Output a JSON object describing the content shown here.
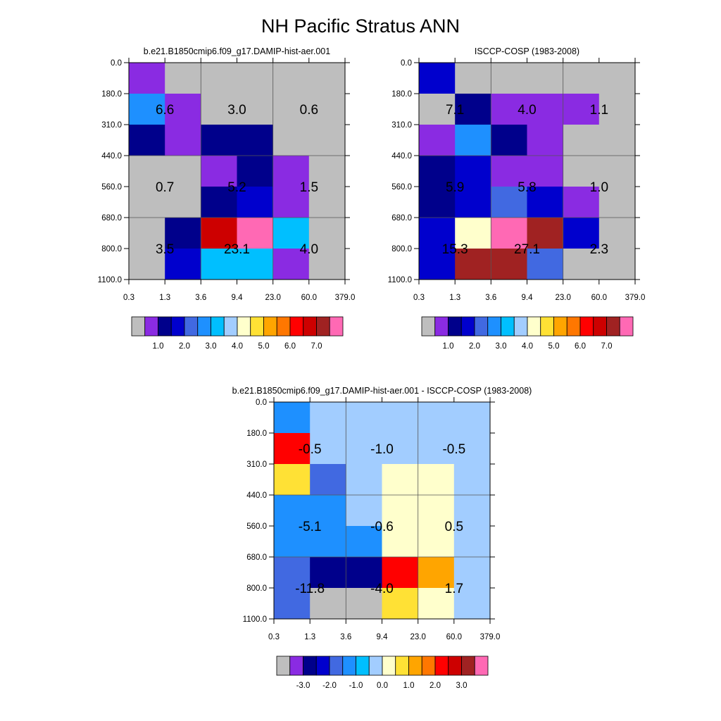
{
  "page_title": "NH Pacific Stratus ANN",
  "chart_data": [
    {
      "type": "heatmap",
      "id": "model",
      "title": "b.e21.B1850cmip6.f09_g17.DAMIP-hist-aer.001",
      "x_tick_labels": [
        "0.3",
        "1.3",
        "3.6",
        "9.4",
        "23.0",
        "60.0",
        "379.0"
      ],
      "y_tick_labels": [
        "0.0",
        "180.0",
        "310.0",
        "440.0",
        "560.0",
        "680.0",
        "800.0",
        "1100.0"
      ],
      "cells": [
        [
          "#8A2BE2",
          "#BEBEBE",
          "#BEBEBE",
          "#BEBEBE",
          "#BEBEBE",
          "#BEBEBE"
        ],
        [
          "#1E90FF",
          "#8A2BE2",
          "#BEBEBE",
          "#BEBEBE",
          "#BEBEBE",
          "#BEBEBE"
        ],
        [
          "#00008B",
          "#8A2BE2",
          "#00008B",
          "#00008B",
          "#BEBEBE",
          "#BEBEBE"
        ],
        [
          "#BEBEBE",
          "#BEBEBE",
          "#8A2BE2",
          "#00008B",
          "#8A2BE2",
          "#BEBEBE"
        ],
        [
          "#BEBEBE",
          "#BEBEBE",
          "#00008B",
          "#0000CD",
          "#8A2BE2",
          "#BEBEBE"
        ],
        [
          "#BEBEBE",
          "#00008B",
          "#CD0000",
          "#FF69B4",
          "#00BFFF",
          "#BEBEBE"
        ],
        [
          "#BEBEBE",
          "#0000CD",
          "#00BFFF",
          "#00BFFF",
          "#8A2BE2",
          "#BEBEBE"
        ]
      ],
      "box_labels": [
        {
          "col": 0,
          "row": 0,
          "text": "6.6"
        },
        {
          "col": 1,
          "row": 0,
          "text": "3.0"
        },
        {
          "col": 2,
          "row": 0,
          "text": "0.6"
        },
        {
          "col": 0,
          "row": 1,
          "text": "0.7"
        },
        {
          "col": 1,
          "row": 1,
          "text": "5.2"
        },
        {
          "col": 2,
          "row": 1,
          "text": "1.5"
        },
        {
          "col": 0,
          "row": 2,
          "text": "3.5"
        },
        {
          "col": 1,
          "row": 2,
          "text": "23.1"
        },
        {
          "col": 2,
          "row": 2,
          "text": "4.0"
        }
      ],
      "colorbar": {
        "colors": [
          "#BEBEBE",
          "#8A2BE2",
          "#00008B",
          "#0000CD",
          "#4169E1",
          "#1E90FF",
          "#00BFFF",
          "#A2CDFF",
          "#FFFFCC",
          "#FFE135",
          "#FFA500",
          "#FF7700",
          "#FF0000",
          "#CD0000",
          "#A02222",
          "#FF69B4"
        ],
        "labels": [
          "1.0",
          "2.0",
          "3.0",
          "4.0",
          "5.0",
          "6.0",
          "7.0"
        ],
        "first_boundary": 1
      }
    },
    {
      "type": "heatmap",
      "id": "obs",
      "title": "ISCCP-COSP (1983-2008)",
      "x_tick_labels": [
        "0.3",
        "1.3",
        "3.6",
        "9.4",
        "23.0",
        "60.0",
        "379.0"
      ],
      "y_tick_labels": [
        "0.0",
        "180.0",
        "310.0",
        "440.0",
        "560.0",
        "680.0",
        "800.0",
        "1100.0"
      ],
      "cells": [
        [
          "#0000CD",
          "#BEBEBE",
          "#BEBEBE",
          "#BEBEBE",
          "#BEBEBE",
          "#BEBEBE"
        ],
        [
          "#BEBEBE",
          "#00008B",
          "#8A2BE2",
          "#8A2BE2",
          "#8A2BE2",
          "#BEBEBE"
        ],
        [
          "#8A2BE2",
          "#1E90FF",
          "#00008B",
          "#8A2BE2",
          "#BEBEBE",
          "#BEBEBE"
        ],
        [
          "#00008B",
          "#0000CD",
          "#8A2BE2",
          "#8A2BE2",
          "#BEBEBE",
          "#BEBEBE"
        ],
        [
          "#00008B",
          "#0000CD",
          "#4169E1",
          "#0000CD",
          "#8A2BE2",
          "#BEBEBE"
        ],
        [
          "#0000CD",
          "#FFFFCC",
          "#FF69B4",
          "#A02222",
          "#0000CD",
          "#BEBEBE"
        ],
        [
          "#0000CD",
          "#A02222",
          "#A02222",
          "#4169E1",
          "#BEBEBE",
          "#BEBEBE"
        ]
      ],
      "box_labels": [
        {
          "col": 0,
          "row": 0,
          "text": "7.1"
        },
        {
          "col": 1,
          "row": 0,
          "text": "4.0"
        },
        {
          "col": 2,
          "row": 0,
          "text": "1.1"
        },
        {
          "col": 0,
          "row": 1,
          "text": "5.9"
        },
        {
          "col": 1,
          "row": 1,
          "text": "5.8"
        },
        {
          "col": 2,
          "row": 1,
          "text": "1.0"
        },
        {
          "col": 0,
          "row": 2,
          "text": "15.3"
        },
        {
          "col": 1,
          "row": 2,
          "text": "27.1"
        },
        {
          "col": 2,
          "row": 2,
          "text": "2.3"
        }
      ],
      "colorbar": {
        "colors": [
          "#BEBEBE",
          "#8A2BE2",
          "#00008B",
          "#0000CD",
          "#4169E1",
          "#1E90FF",
          "#00BFFF",
          "#A2CDFF",
          "#FFFFCC",
          "#FFE135",
          "#FFA500",
          "#FF7700",
          "#FF0000",
          "#CD0000",
          "#A02222",
          "#FF69B4"
        ],
        "labels": [
          "1.0",
          "2.0",
          "3.0",
          "4.0",
          "5.0",
          "6.0",
          "7.0"
        ],
        "first_boundary": 1
      }
    },
    {
      "type": "heatmap",
      "id": "diff",
      "title": "b.e21.B1850cmip6.f09_g17.DAMIP-hist-aer.001 - ISCCP-COSP (1983-2008)",
      "x_tick_labels": [
        "0.3",
        "1.3",
        "3.6",
        "9.4",
        "23.0",
        "60.0",
        "379.0"
      ],
      "y_tick_labels": [
        "0.0",
        "180.0",
        "310.0",
        "440.0",
        "560.0",
        "680.0",
        "800.0",
        "1100.0"
      ],
      "cells": [
        [
          "#1E90FF",
          "#A2CDFF",
          "#A2CDFF",
          "#A2CDFF",
          "#A2CDFF",
          "#A2CDFF"
        ],
        [
          "#FF0000",
          "#A2CDFF",
          "#A2CDFF",
          "#A2CDFF",
          "#A2CDFF",
          "#A2CDFF"
        ],
        [
          "#FFE135",
          "#4169E1",
          "#A2CDFF",
          "#FFFFCC",
          "#FFFFCC",
          "#A2CDFF"
        ],
        [
          "#1E90FF",
          "#1E90FF",
          "#A2CDFF",
          "#FFFFCC",
          "#FFFFCC",
          "#A2CDFF"
        ],
        [
          "#1E90FF",
          "#1E90FF",
          "#1E90FF",
          "#FFFFCC",
          "#FFFFCC",
          "#A2CDFF"
        ],
        [
          "#4169E1",
          "#00008B",
          "#00008B",
          "#FF0000",
          "#FFA500",
          "#A2CDFF"
        ],
        [
          "#4169E1",
          "#BEBEBE",
          "#BEBEBE",
          "#FFE135",
          "#FFFFCC",
          "#A2CDFF"
        ]
      ],
      "box_labels": [
        {
          "col": 0,
          "row": 0,
          "text": "-0.5"
        },
        {
          "col": 1,
          "row": 0,
          "text": "-1.0"
        },
        {
          "col": 2,
          "row": 0,
          "text": "-0.5"
        },
        {
          "col": 0,
          "row": 1,
          "text": "-5.1"
        },
        {
          "col": 1,
          "row": 1,
          "text": "-0.6"
        },
        {
          "col": 2,
          "row": 1,
          "text": "0.5"
        },
        {
          "col": 0,
          "row": 2,
          "text": "-11.8"
        },
        {
          "col": 1,
          "row": 2,
          "text": "-4.0"
        },
        {
          "col": 2,
          "row": 2,
          "text": "1.7"
        }
      ],
      "colorbar": {
        "colors": [
          "#BEBEBE",
          "#8A2BE2",
          "#00008B",
          "#0000CD",
          "#4169E1",
          "#1E90FF",
          "#00BFFF",
          "#A2CDFF",
          "#FFFFCC",
          "#FFE135",
          "#FFA500",
          "#FF7700",
          "#FF0000",
          "#CD0000",
          "#A02222",
          "#FF69B4"
        ],
        "labels": [
          "-3.0",
          "-2.0",
          "-1.0",
          "0.0",
          "1.0",
          "2.0",
          "3.0"
        ],
        "first_boundary": 1
      }
    }
  ]
}
